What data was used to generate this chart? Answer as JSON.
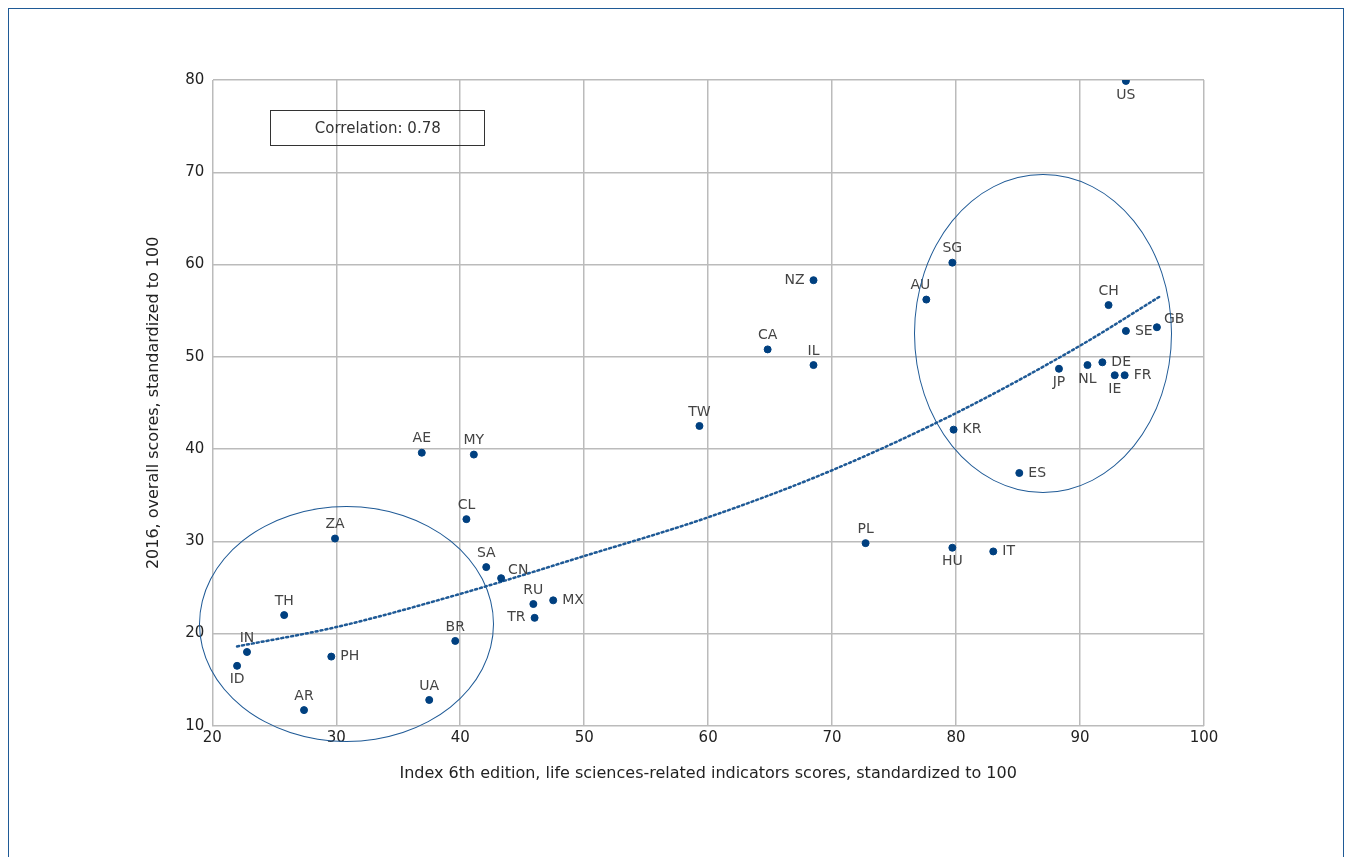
{
  "chart_data": {
    "type": "scatter",
    "xlabel": "Index 6th edition, life sciences-related indicators scores, standardized to 100",
    "ylabel": "2016, overall scores, standardized to 100",
    "xlim": [
      20,
      100
    ],
    "xticks": [
      20,
      30,
      40,
      50,
      60,
      70,
      80,
      90,
      100
    ],
    "ylim": [
      10,
      80
    ],
    "yticks": [
      10,
      20,
      30,
      40,
      50,
      60,
      70,
      80
    ],
    "grid": true,
    "legend": false,
    "series": [
      {
        "type": "scatter",
        "color": "#004080",
        "marker": "circle",
        "x": [
          93.7,
          79.7,
          77.6,
          68.5,
          92.3,
          96.2,
          93.7,
          64.8,
          68.5,
          91.8,
          90.6,
          88.3,
          92.8,
          93.6,
          59.3,
          79.8,
          36.9,
          41.1,
          85.1,
          40.5,
          29.9,
          72.7,
          79.7,
          83.0,
          42.1,
          43.3,
          47.5,
          45.9,
          46.0,
          25.8,
          39.6,
          22.8,
          29.6,
          22.0,
          37.5,
          27.4
        ],
        "values": [
          79.9,
          60.2,
          56.2,
          58.3,
          55.6,
          53.2,
          52.8,
          50.8,
          49.1,
          49.4,
          49.1,
          48.7,
          48.0,
          48.0,
          42.5,
          42.1,
          39.6,
          39.4,
          37.4,
          32.4,
          30.3,
          29.8,
          29.3,
          28.9,
          27.2,
          26.0,
          23.6,
          23.2,
          21.7,
          22.0,
          19.2,
          18.0,
          17.5,
          16.5,
          12.8,
          11.7
        ]
      },
      {
        "type": "line",
        "color": "#1f5a96",
        "marker": "none",
        "line_style": "dotted",
        "x": [
          22,
          30,
          40,
          50,
          60,
          70,
          80,
          90,
          96.4
        ],
        "values": [
          18.6,
          20.7,
          24.3,
          28.4,
          32.6,
          37.7,
          43.9,
          51.2,
          56.5
        ]
      }
    ],
    "annotations": [
      "Correlation: 0.78",
      {
        "text": "US",
        "x": 93.7,
        "y": 79.9
      },
      {
        "text": "SG",
        "x": 79.7,
        "y": 60.2
      },
      {
        "text": "AU",
        "x": 77.6,
        "y": 56.2
      },
      {
        "text": "NZ",
        "x": 68.5,
        "y": 58.3
      },
      {
        "text": "CH",
        "x": 92.3,
        "y": 55.6
      },
      {
        "text": "GB",
        "x": 96.2,
        "y": 53.2
      },
      {
        "text": "SE",
        "x": 93.7,
        "y": 52.8
      },
      {
        "text": "CA",
        "x": 64.8,
        "y": 50.8
      },
      {
        "text": "IL",
        "x": 68.5,
        "y": 49.1
      },
      {
        "text": "DE",
        "x": 91.8,
        "y": 49.4
      },
      {
        "text": "NL",
        "x": 90.6,
        "y": 49.1
      },
      {
        "text": "JP",
        "x": 88.3,
        "y": 48.7
      },
      {
        "text": "IE",
        "x": 92.8,
        "y": 48.0
      },
      {
        "text": "FR",
        "x": 93.6,
        "y": 48.0
      },
      {
        "text": "TW",
        "x": 59.3,
        "y": 42.5
      },
      {
        "text": "KR",
        "x": 79.8,
        "y": 42.1
      },
      {
        "text": "AE",
        "x": 36.9,
        "y": 39.6
      },
      {
        "text": "MY",
        "x": 41.1,
        "y": 39.4
      },
      {
        "text": "ES",
        "x": 85.1,
        "y": 37.4
      },
      {
        "text": "CL",
        "x": 40.5,
        "y": 32.4
      },
      {
        "text": "ZA",
        "x": 29.9,
        "y": 30.3
      },
      {
        "text": "PL",
        "x": 72.7,
        "y": 29.8
      },
      {
        "text": "HU",
        "x": 79.7,
        "y": 29.3
      },
      {
        "text": "IT",
        "x": 83.0,
        "y": 28.9
      },
      {
        "text": "SA",
        "x": 42.1,
        "y": 27.2
      },
      {
        "text": "CN",
        "x": 43.3,
        "y": 26.0
      },
      {
        "text": "MX",
        "x": 47.5,
        "y": 23.6
      },
      {
        "text": "RU",
        "x": 45.9,
        "y": 23.2
      },
      {
        "text": "TR",
        "x": 46.0,
        "y": 21.7
      },
      {
        "text": "TH",
        "x": 25.8,
        "y": 22.0
      },
      {
        "text": "BR",
        "x": 39.6,
        "y": 19.2
      },
      {
        "text": "IN",
        "x": 22.8,
        "y": 18.0
      },
      {
        "text": "PH",
        "x": 29.6,
        "y": 17.5
      },
      {
        "text": "ID",
        "x": 22.0,
        "y": 16.5
      },
      {
        "text": "UA",
        "x": 37.5,
        "y": 12.8
      },
      {
        "text": "AR",
        "x": 27.4,
        "y": 11.7
      }
    ]
  }
}
